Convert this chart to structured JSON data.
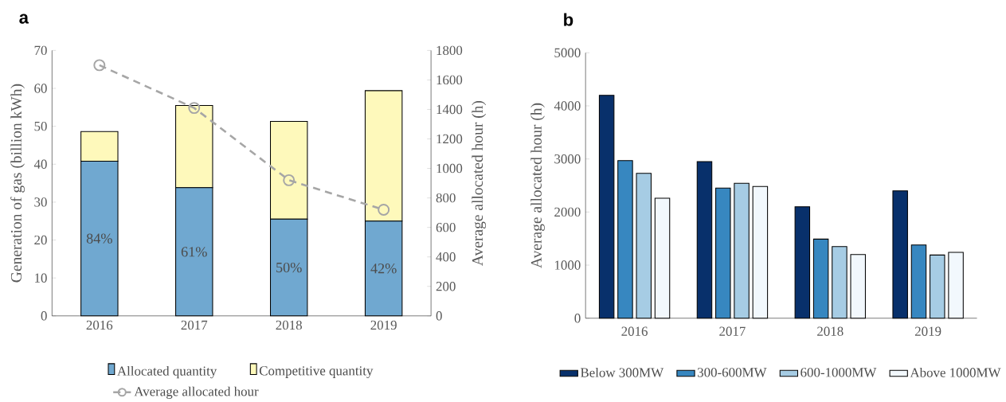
{
  "chart_data": [
    {
      "type": "bar",
      "title": "a",
      "stacked": true,
      "categories": [
        "2016",
        "2017",
        "2018",
        "2019"
      ],
      "ylabel": "Generation of gas (billion kWh)",
      "y2label": "Average allocated hour (h)",
      "ylim": [
        0,
        70
      ],
      "yticks": [
        0,
        10,
        20,
        30,
        40,
        50,
        60,
        70
      ],
      "y2lim": [
        0,
        1800
      ],
      "y2ticks": [
        0,
        200,
        400,
        600,
        800,
        1000,
        1200,
        1400,
        1600,
        1800
      ],
      "legend": "bottom",
      "grid": false,
      "annotations": [
        "84%",
        "61%",
        "50%",
        "42%"
      ],
      "series": [
        {
          "name": "Allocated quantity",
          "color": "#70a8d0",
          "values": [
            40.8,
            33.8,
            25.5,
            25.0
          ]
        },
        {
          "name": "Competitive quantity",
          "color": "#fef9bb",
          "values": [
            7.8,
            21.7,
            25.8,
            34.4
          ]
        },
        {
          "name": "Average allocated hour",
          "type": "line",
          "axis": "y2",
          "color": "#a6a6a6",
          "marker": "circle",
          "line_style": "dashed",
          "values": [
            1700,
            1410,
            920,
            720
          ]
        }
      ]
    },
    {
      "type": "bar",
      "title": "b",
      "categories": [
        "2016",
        "2017",
        "2018",
        "2019"
      ],
      "ylabel": "Average allocated hour (h)",
      "ylim": [
        0,
        5000
      ],
      "yticks": [
        0,
        1000,
        2000,
        3000,
        4000,
        5000
      ],
      "legend": "bottom",
      "grid": false,
      "series": [
        {
          "name": "Below 300MW",
          "color": "#08306b",
          "values": [
            4200,
            2950,
            2100,
            2400
          ]
        },
        {
          "name": "300-600MW",
          "color": "#3787c0",
          "values": [
            2970,
            2450,
            1490,
            1380
          ]
        },
        {
          "name": "600-1000MW",
          "color": "#a6cce4",
          "values": [
            2730,
            2540,
            1350,
            1190
          ]
        },
        {
          "name": "Above 1000MW",
          "color": "#f2f8fd",
          "values": [
            2260,
            2480,
            1200,
            1240
          ]
        }
      ]
    }
  ]
}
